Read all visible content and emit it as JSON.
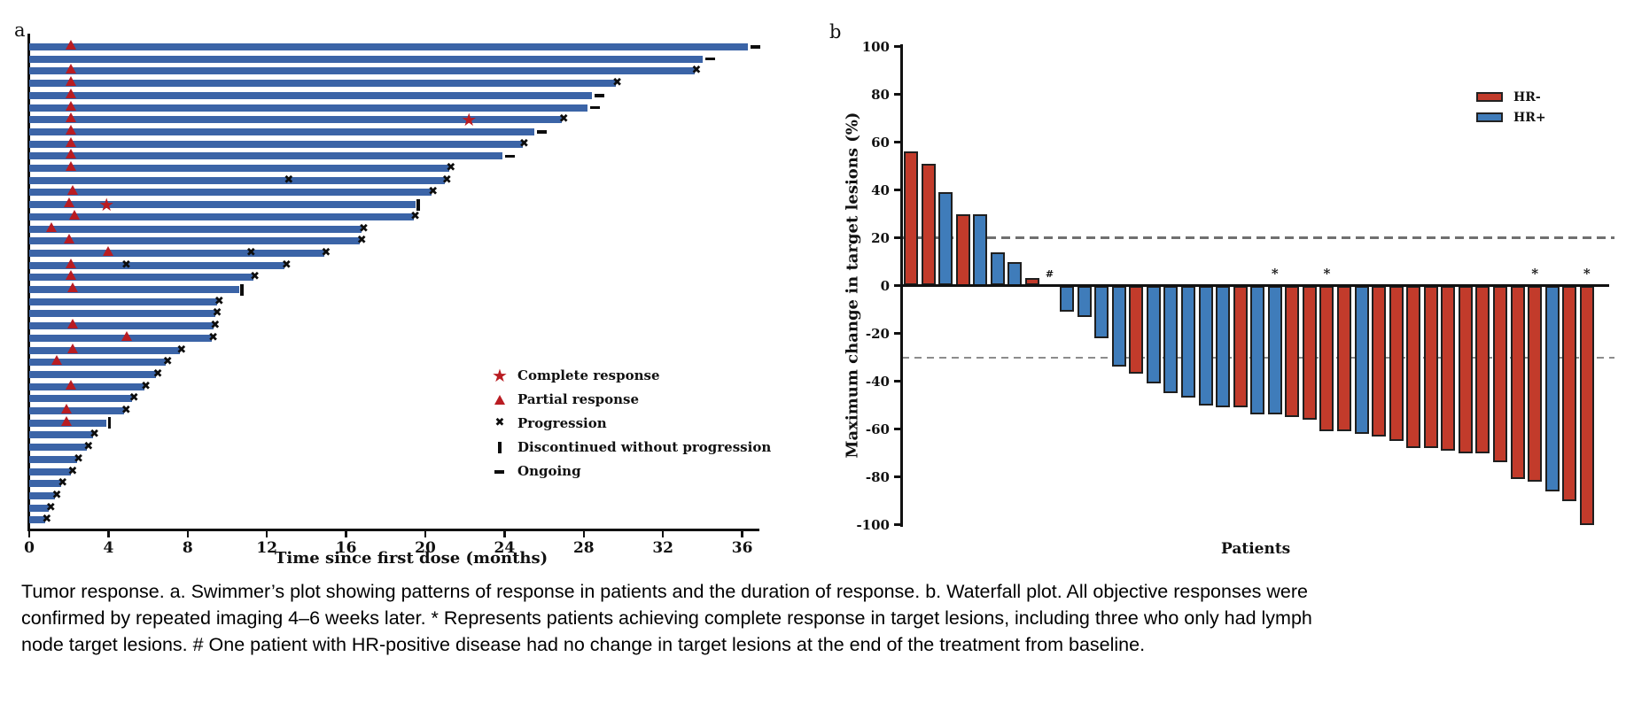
{
  "panel_a": {
    "label": "a"
  },
  "panel_b": {
    "label": "b"
  },
  "caption": {
    "lines": [
      "Tumor response. a. Swimmer’s plot showing patterns of response in patients and the duration of response. b. Waterfall plot. All objective responses were",
      "confirmed by repeated imaging 4–6 weeks later. * Represents patients achieving complete response in target lesions, including three who only had lymph",
      "node target lesions. # One patient with HR-positive disease had no change in target lesions at the end of the treatment from baseline."
    ]
  },
  "chart_data": [
    {
      "type": "swimmer",
      "panel": "a",
      "xlabel": "Time since first dose (months)",
      "xlim": [
        0,
        36.9
      ],
      "x_ticks": [
        0,
        4,
        8,
        12,
        16,
        20,
        24,
        28,
        32,
        36
      ],
      "bar_color": "#3b64a7",
      "marker_red": "#b91c22",
      "marker_black": "#0d0d0d",
      "legend": [
        {
          "marker": "star",
          "label": "Complete response"
        },
        {
          "marker": "triangle",
          "label": "Partial response"
        },
        {
          "marker": "x",
          "label": "Progression"
        },
        {
          "marker": "vbar",
          "label": "Discontinued without progression"
        },
        {
          "marker": "dash",
          "label": "Ongoing"
        }
      ],
      "patients": [
        {
          "duration": 36.3,
          "partial_response_at": 2.1,
          "end": "ongoing"
        },
        {
          "duration": 34.0,
          "end": "ongoing"
        },
        {
          "duration": 33.6,
          "partial_response_at": 2.1,
          "end": "progression"
        },
        {
          "duration": 29.6,
          "partial_response_at": 2.1,
          "end": "progression"
        },
        {
          "duration": 28.4,
          "partial_response_at": 2.1,
          "end": "ongoing"
        },
        {
          "duration": 28.2,
          "partial_response_at": 2.1,
          "end": "ongoing"
        },
        {
          "duration": 26.9,
          "partial_response_at": 2.1,
          "complete_response_at": 22.2,
          "end": "progression"
        },
        {
          "duration": 25.5,
          "partial_response_at": 2.1,
          "end": "ongoing"
        },
        {
          "duration": 24.9,
          "partial_response_at": 2.1,
          "end": "progression"
        },
        {
          "duration": 23.9,
          "partial_response_at": 2.1,
          "end": "ongoing"
        },
        {
          "duration": 21.2,
          "partial_response_at": 2.1,
          "end": "progression"
        },
        {
          "duration": 21.0,
          "mid_progression": [
            13.1
          ],
          "end": "progression"
        },
        {
          "duration": 20.3,
          "partial_response_at": 2.2,
          "end": "progression"
        },
        {
          "duration": 19.5,
          "partial_response_at": 2.0,
          "complete_response_at": 3.9,
          "end": "discontinued"
        },
        {
          "duration": 19.4,
          "partial_response_at": 2.3,
          "end": "progression"
        },
        {
          "duration": 16.8,
          "partial_response_at": 1.1,
          "end": "progression"
        },
        {
          "duration": 16.7,
          "partial_response_at": 2.0,
          "end": "progression"
        },
        {
          "duration": 14.9,
          "partial_response_at": 4.0,
          "mid_progression": [
            11.2
          ],
          "end": "progression"
        },
        {
          "duration": 12.9,
          "partial_response_at": 2.1,
          "mid_progression": [
            4.9
          ],
          "end": "progression"
        },
        {
          "duration": 11.3,
          "partial_response_at": 2.1,
          "end": "progression"
        },
        {
          "duration": 10.6,
          "partial_response_at": 2.2,
          "end": "discontinued"
        },
        {
          "duration": 9.5,
          "end": "progression"
        },
        {
          "duration": 9.4,
          "end": "progression"
        },
        {
          "duration": 9.3,
          "partial_response_at": 2.2,
          "end": "progression"
        },
        {
          "duration": 9.2,
          "partial_response_at": 4.9,
          "end": "progression"
        },
        {
          "duration": 7.6,
          "partial_response_at": 2.2,
          "end": "progression"
        },
        {
          "duration": 6.9,
          "partial_response_at": 1.4,
          "end": "progression"
        },
        {
          "duration": 6.4,
          "end": "progression"
        },
        {
          "duration": 5.8,
          "partial_response_at": 2.1,
          "end": "progression"
        },
        {
          "duration": 5.2,
          "end": "progression"
        },
        {
          "duration": 4.8,
          "partial_response_at": 1.9,
          "end": "progression"
        },
        {
          "duration": 3.9,
          "partial_response_at": 1.9,
          "end": "discontinued"
        },
        {
          "duration": 3.2,
          "end": "progression"
        },
        {
          "duration": 2.9,
          "end": "progression"
        },
        {
          "duration": 2.4,
          "end": "progression"
        },
        {
          "duration": 2.1,
          "end": "progression"
        },
        {
          "duration": 1.6,
          "end": "progression"
        },
        {
          "duration": 1.3,
          "end": "progression"
        },
        {
          "duration": 1.0,
          "end": "progression"
        },
        {
          "duration": 0.8,
          "end": "progression"
        }
      ]
    },
    {
      "type": "waterfall",
      "panel": "b",
      "ylabel": "Maximum change in target lesions (%)",
      "xlabel": "Patients",
      "ylim": [
        -100,
        100
      ],
      "y_ticks": [
        100,
        80,
        60,
        40,
        20,
        0,
        -20,
        -40,
        -60,
        -80,
        -100
      ],
      "reference_lines": [
        20,
        -30
      ],
      "legend": [
        {
          "label": "HR-",
          "color": "#c23b2b"
        },
        {
          "label": "HR+",
          "color": "#3f7cba"
        }
      ],
      "colors": {
        "HR-": "#c23b2b",
        "HR+": "#3f7cba"
      },
      "patients": [
        {
          "change": 56,
          "group": "HR-"
        },
        {
          "change": 51,
          "group": "HR-"
        },
        {
          "change": 39,
          "group": "HR+"
        },
        {
          "change": 30,
          "group": "HR-"
        },
        {
          "change": 30,
          "group": "HR+"
        },
        {
          "change": 14,
          "group": "HR+"
        },
        {
          "change": 10,
          "group": "HR+"
        },
        {
          "change": 3,
          "group": "HR-"
        },
        {
          "change": 0,
          "group": "HR+",
          "flag": "#"
        },
        {
          "change": -11,
          "group": "HR+"
        },
        {
          "change": -13,
          "group": "HR+"
        },
        {
          "change": -22,
          "group": "HR+"
        },
        {
          "change": -34,
          "group": "HR+"
        },
        {
          "change": -37,
          "group": "HR-"
        },
        {
          "change": -41,
          "group": "HR+"
        },
        {
          "change": -45,
          "group": "HR+"
        },
        {
          "change": -47,
          "group": "HR+"
        },
        {
          "change": -50,
          "group": "HR+"
        },
        {
          "change": -51,
          "group": "HR+"
        },
        {
          "change": -51,
          "group": "HR-"
        },
        {
          "change": -54,
          "group": "HR+"
        },
        {
          "change": -54,
          "group": "HR+",
          "flag": "*"
        },
        {
          "change": -55,
          "group": "HR-"
        },
        {
          "change": -56,
          "group": "HR-"
        },
        {
          "change": -61,
          "group": "HR-",
          "flag": "*"
        },
        {
          "change": -61,
          "group": "HR-"
        },
        {
          "change": -62,
          "group": "HR+"
        },
        {
          "change": -63,
          "group": "HR-"
        },
        {
          "change": -65,
          "group": "HR-"
        },
        {
          "change": -68,
          "group": "HR-"
        },
        {
          "change": -68,
          "group": "HR-"
        },
        {
          "change": -69,
          "group": "HR-"
        },
        {
          "change": -70,
          "group": "HR-"
        },
        {
          "change": -70,
          "group": "HR-"
        },
        {
          "change": -74,
          "group": "HR-"
        },
        {
          "change": -81,
          "group": "HR-"
        },
        {
          "change": -82,
          "group": "HR-",
          "flag": "*"
        },
        {
          "change": -86,
          "group": "HR+"
        },
        {
          "change": -90,
          "group": "HR-"
        },
        {
          "change": -100,
          "group": "HR-",
          "flag": "*"
        }
      ]
    }
  ]
}
